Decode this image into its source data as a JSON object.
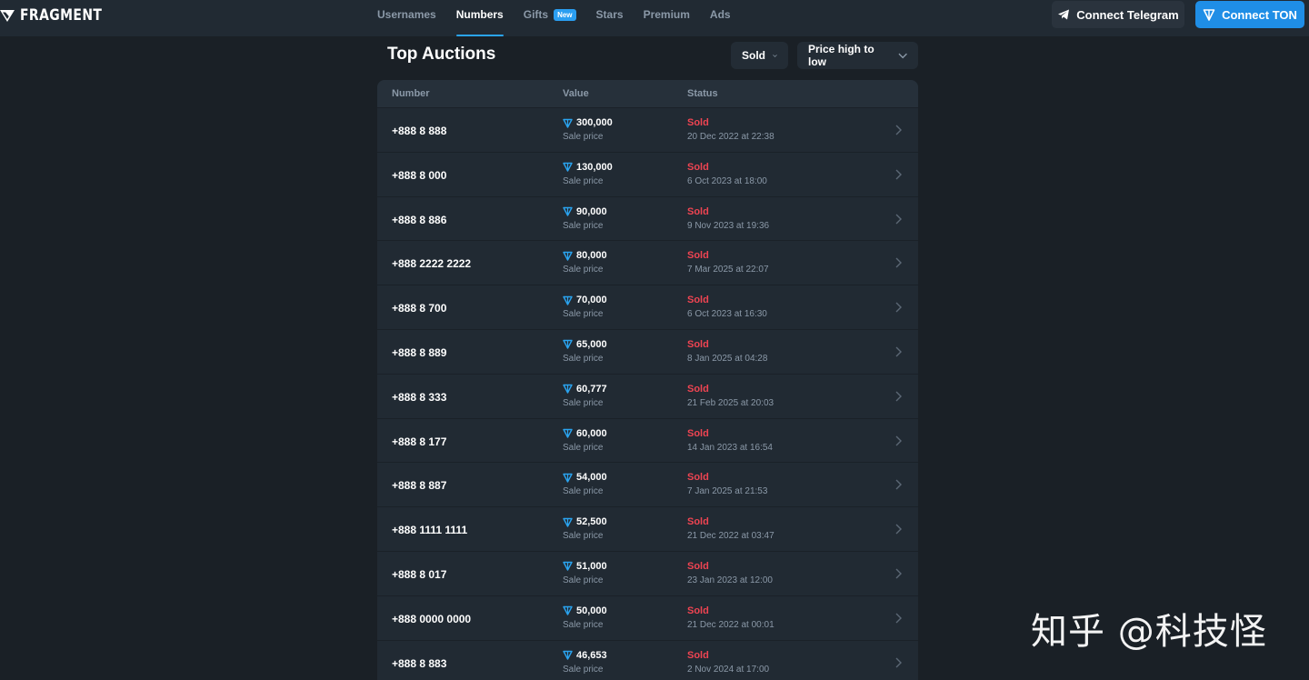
{
  "header": {
    "logo_text": "FRAGMENT",
    "nav": [
      {
        "label": "Usernames",
        "active": false
      },
      {
        "label": "Numbers",
        "active": true
      },
      {
        "label": "Gifts",
        "active": false,
        "badge": "New"
      },
      {
        "label": "Stars",
        "active": false
      },
      {
        "label": "Premium",
        "active": false
      },
      {
        "label": "Ads",
        "active": false
      }
    ],
    "connect_telegram": "Connect Telegram",
    "connect_ton": "Connect TON"
  },
  "page": {
    "title": "Top Auctions",
    "filter_status": "Sold",
    "filter_sort": "Price high to low"
  },
  "table": {
    "columns": {
      "number": "Number",
      "value": "Value",
      "status": "Status"
    },
    "value_sub": "Sale price",
    "rows": [
      {
        "number": "+888 8 888",
        "value": "300,000",
        "status": "Sold",
        "date": "20 Dec 2022 at 22:38"
      },
      {
        "number": "+888 8 000",
        "value": "130,000",
        "status": "Sold",
        "date": "6 Oct 2023 at 18:00"
      },
      {
        "number": "+888 8 886",
        "value": "90,000",
        "status": "Sold",
        "date": "9 Nov 2023 at 19:36"
      },
      {
        "number": "+888 2222 2222",
        "value": "80,000",
        "status": "Sold",
        "date": "7 Mar 2025 at 22:07"
      },
      {
        "number": "+888 8 700",
        "value": "70,000",
        "status": "Sold",
        "date": "6 Oct 2023 at 16:30"
      },
      {
        "number": "+888 8 889",
        "value": "65,000",
        "status": "Sold",
        "date": "8 Jan 2025 at 04:28"
      },
      {
        "number": "+888 8 333",
        "value": "60,777",
        "status": "Sold",
        "date": "21 Feb 2025 at 20:03"
      },
      {
        "number": "+888 8 177",
        "value": "60,000",
        "status": "Sold",
        "date": "14 Jan 2023 at 16:54"
      },
      {
        "number": "+888 8 887",
        "value": "54,000",
        "status": "Sold",
        "date": "7 Jan 2025 at 21:53"
      },
      {
        "number": "+888 1111 1111",
        "value": "52,500",
        "status": "Sold",
        "date": "21 Dec 2022 at 03:47"
      },
      {
        "number": "+888 8 017",
        "value": "51,000",
        "status": "Sold",
        "date": "23 Jan 2023 at 12:00"
      },
      {
        "number": "+888 0000 0000",
        "value": "50,000",
        "status": "Sold",
        "date": "21 Dec 2022 at 00:01"
      },
      {
        "number": "+888 8 883",
        "value": "46,653",
        "status": "Sold",
        "date": "2 Nov 2024 at 17:00"
      }
    ]
  },
  "watermark": "知乎 @科技怪",
  "colors": {
    "accent": "#2aa4f0",
    "sold": "#ef4452",
    "background": "#1a2026"
  }
}
